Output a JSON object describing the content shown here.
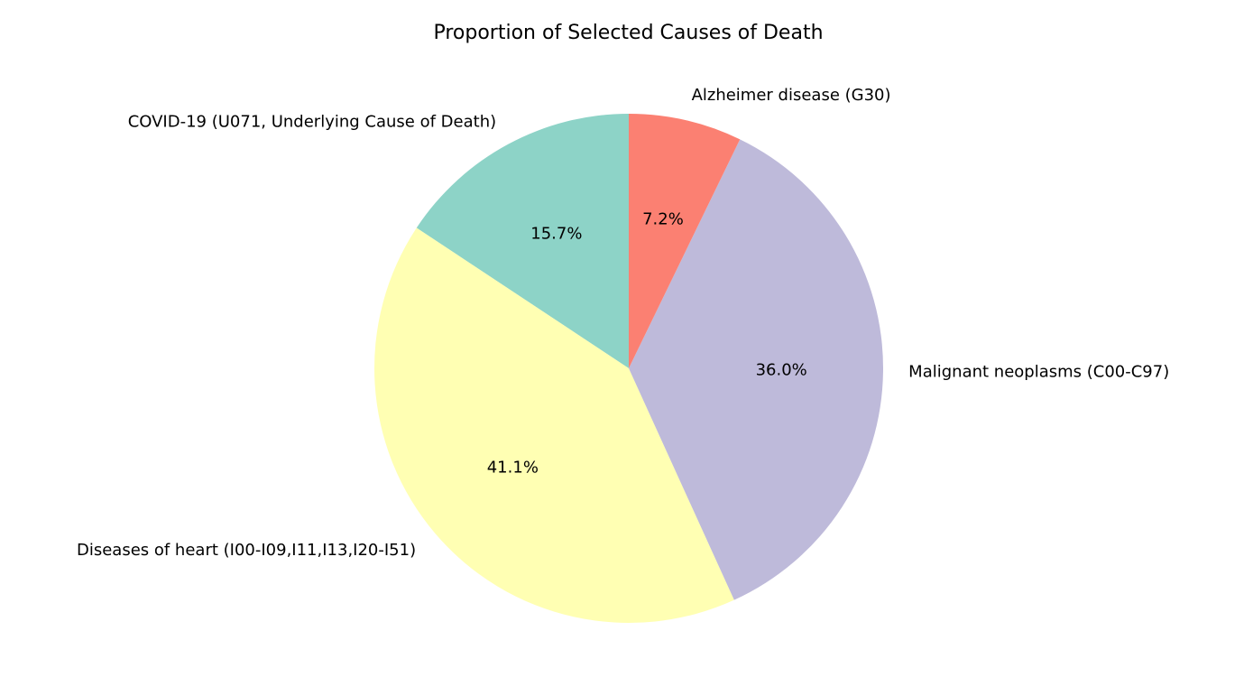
{
  "chart_data": {
    "type": "pie",
    "title": "Proportion of Selected Causes of Death",
    "start_angle_deg": 90,
    "direction": "counterclockwise",
    "slices": [
      {
        "label": "COVID-19 (U071, Underlying Cause of Death)",
        "value": 15.7,
        "pct_label": "15.7%",
        "color": "#8dd3c7"
      },
      {
        "label": "Diseases of heart (I00-I09,I11,I13,I20-I51)",
        "value": 41.1,
        "pct_label": "41.1%",
        "color": "#ffffb3"
      },
      {
        "label": "Malignant neoplasms (C00-C97)",
        "value": 36.0,
        "pct_label": "36.0%",
        "color": "#bebada"
      },
      {
        "label": "Alzheimer disease (G30)",
        "value": 7.2,
        "pct_label": "7.2%",
        "color": "#fb8072"
      }
    ]
  }
}
